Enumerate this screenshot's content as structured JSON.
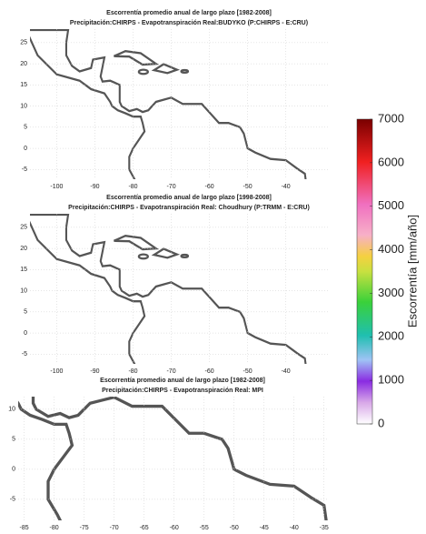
{
  "panels": [
    {
      "title": [
        "Escorrentía promedio anual de largo plazo [1982-2008]",
        "Precipitación:CHIRPS - Evapotranspiración Real:BUDYKO (P:CHIRPS - E:CRU)"
      ],
      "xlim": [
        -107,
        -28.5
      ],
      "ylim": [
        -7.3,
        28.2
      ],
      "xticks": [
        -100,
        -90,
        -80,
        -70,
        -60,
        -50,
        -40
      ],
      "yticks": [
        -5,
        0,
        5,
        10,
        15,
        20,
        25
      ]
    },
    {
      "title": [
        "Escorrentía promedio anual de largo plazo [1998-2008]",
        "Precipitación:CHIRPS - Evapotranspiración Real: Choudhury (P:TRMM - E:CRU)"
      ],
      "xlim": [
        -107,
        -28.5
      ],
      "ylim": [
        -7.3,
        28.2
      ],
      "xticks": [
        -100,
        -90,
        -80,
        -70,
        -60,
        -50,
        -40
      ],
      "yticks": [
        -5,
        0,
        5,
        10,
        15,
        20,
        25
      ]
    },
    {
      "title": [
        "Escorrentía promedio anual de largo plazo [1982-2008]",
        "Precipitación:CHIRPS - Evapotranspiración Real: MPI"
      ],
      "xlim": [
        -86,
        -34.2
      ],
      "ylim": [
        -8.5,
        12.1
      ],
      "xticks": [
        -85,
        -80,
        -75,
        -70,
        -65,
        -60,
        -55,
        -50,
        -45,
        -40,
        -35
      ],
      "yticks": [
        -5,
        0,
        5,
        10
      ]
    }
  ],
  "colorbar": {
    "label": "Escorrentía [mm/año]",
    "lim": [
      0,
      7000
    ],
    "ticks": [
      0,
      1000,
      2000,
      3000,
      4000,
      5000,
      6000,
      7000
    ]
  }
}
